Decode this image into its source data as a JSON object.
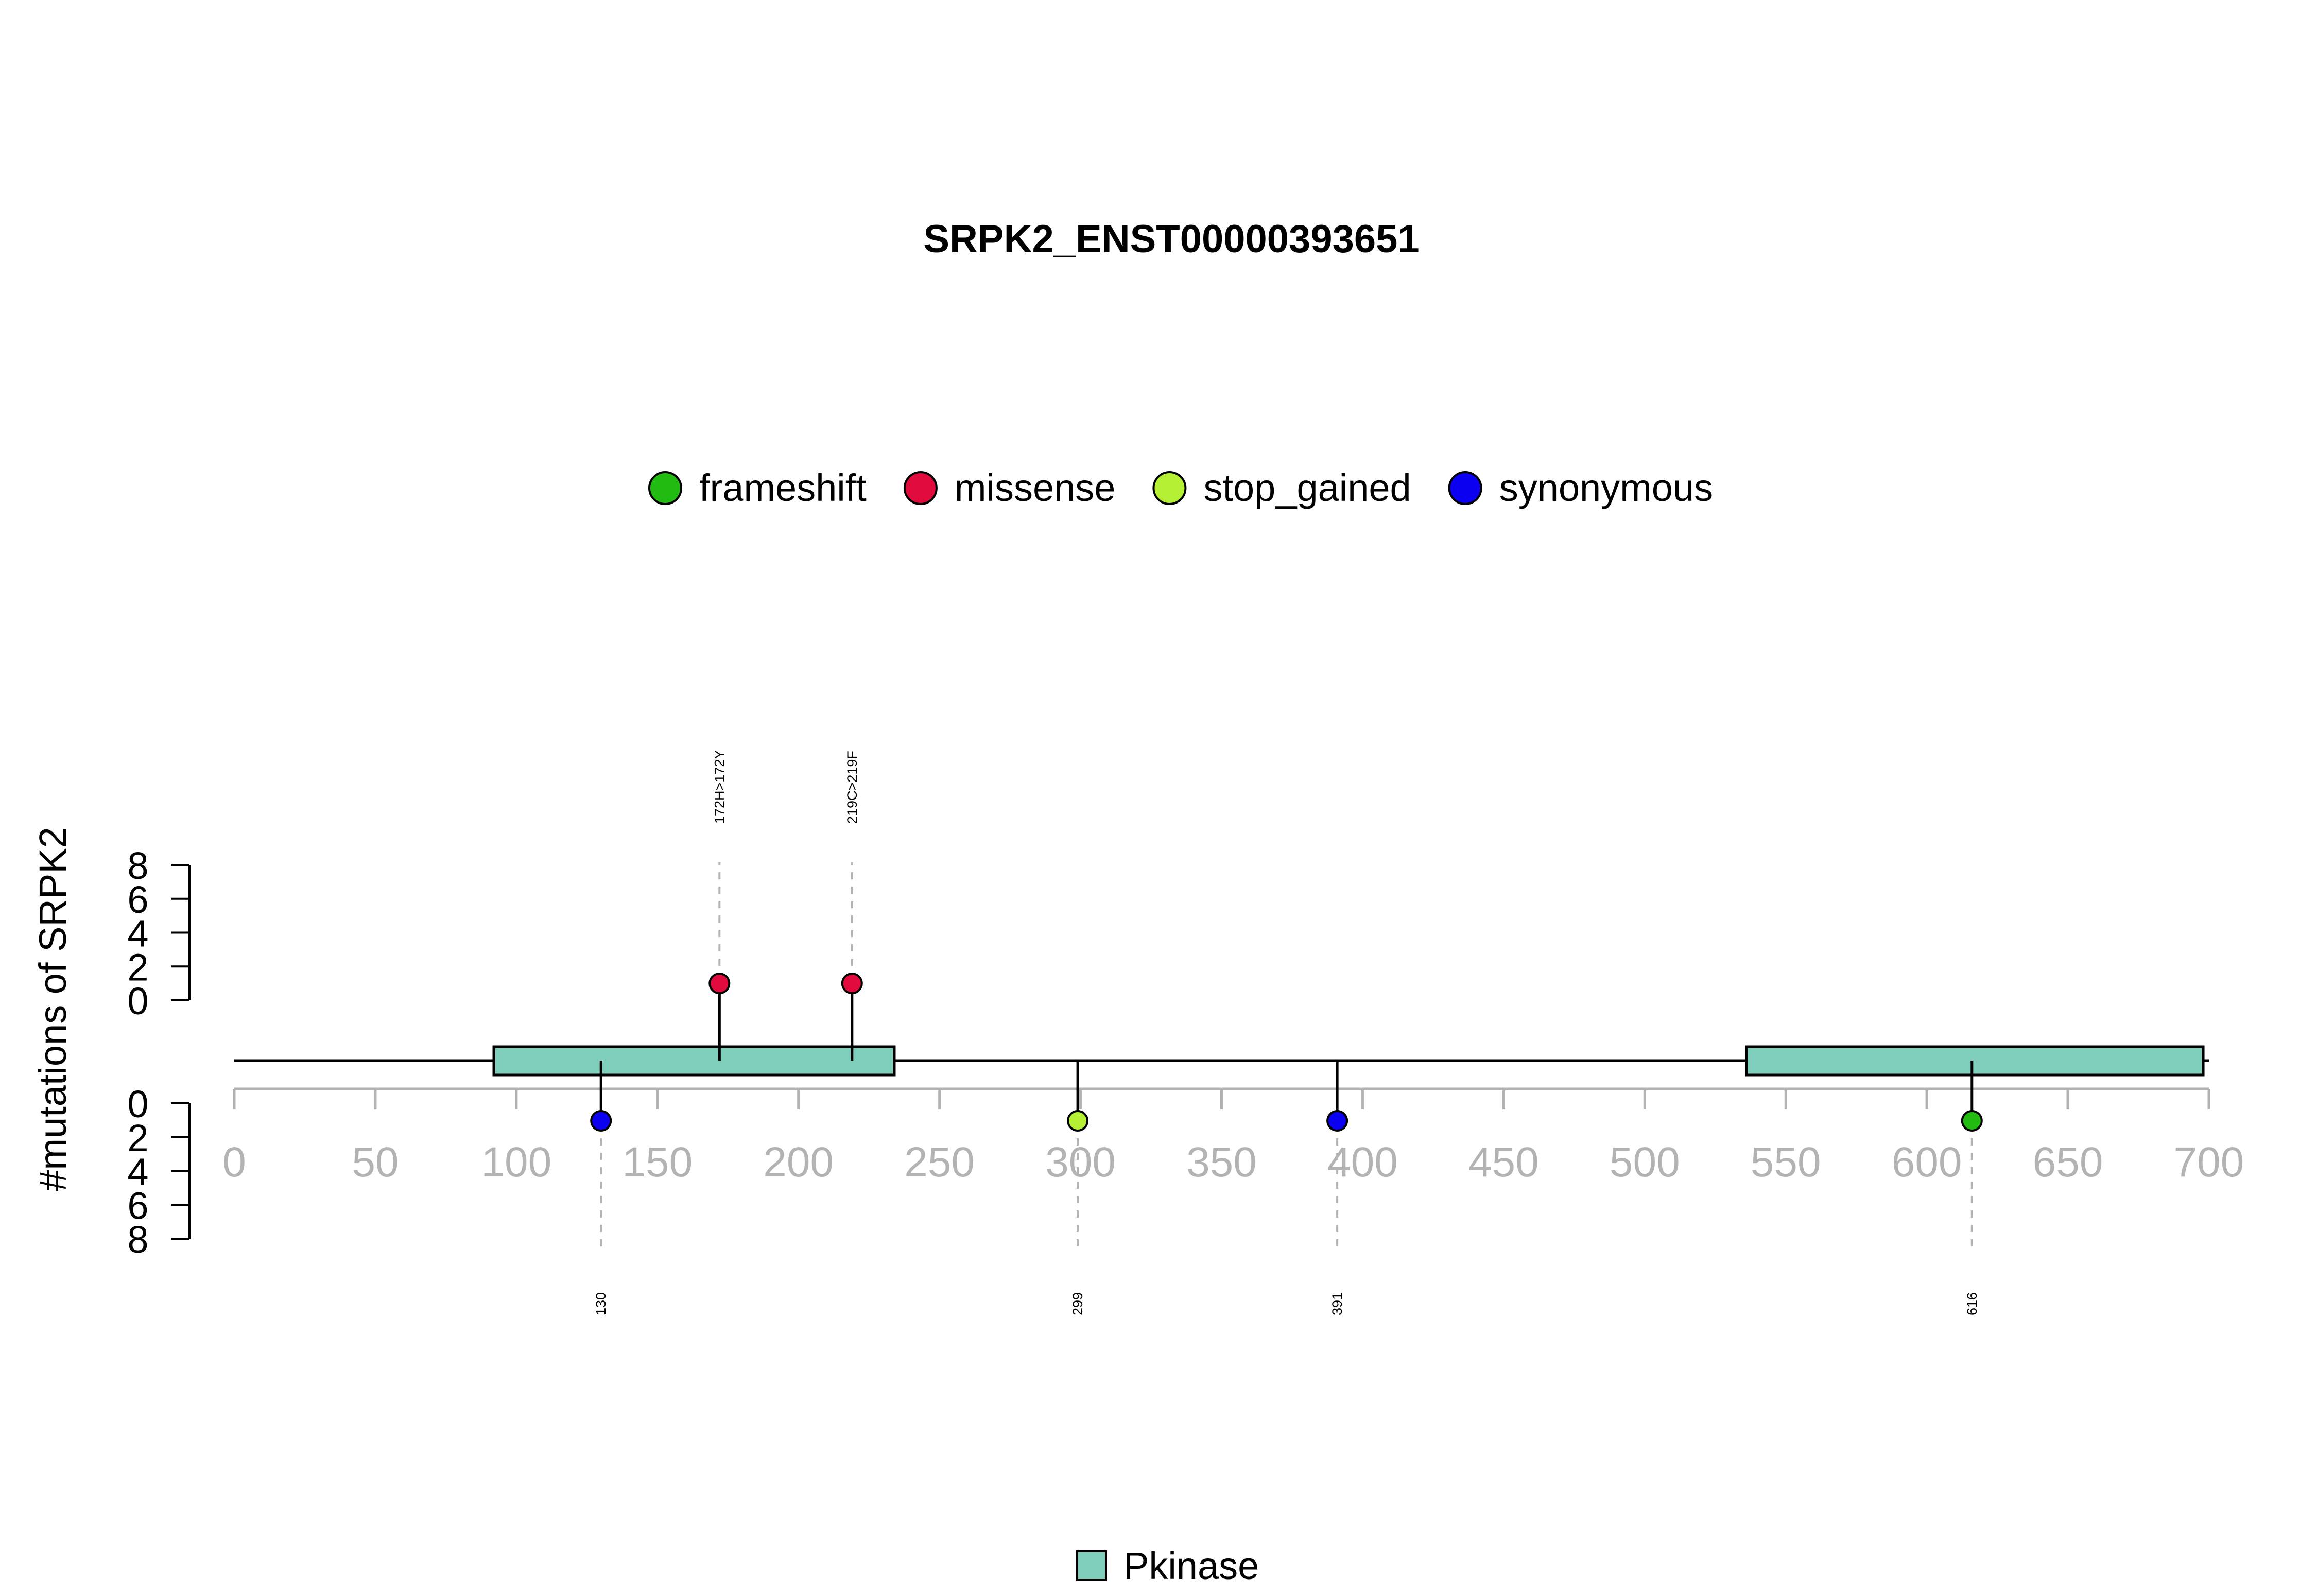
{
  "chart_data": {
    "type": "lollipop",
    "title": "SRPK2_ENST00000393651",
    "ylabel": "#mutations of SRPK2",
    "xlim": [
      0,
      700
    ],
    "x_ticks": [
      "0",
      "50",
      "100",
      "150",
      "200",
      "250",
      "300",
      "350",
      "400",
      "450",
      "500",
      "550",
      "600",
      "650",
      "700"
    ],
    "y_ticks_upper": [
      "8",
      "6",
      "4",
      "2",
      "0"
    ],
    "y_ticks_lower": [
      "0",
      "2",
      "4",
      "6",
      "8"
    ],
    "ylim": [
      0,
      8
    ],
    "legend": [
      {
        "label": "frameshift",
        "color": "#22bb11"
      },
      {
        "label": "missense",
        "color": "#e00b3c"
      },
      {
        "label": "stop_gained",
        "color": "#b5f035"
      },
      {
        "label": "synonymous",
        "color": "#0b00f0"
      }
    ],
    "domain_legend": [
      {
        "label": "Pkinase",
        "color": "#7fcdbb"
      }
    ],
    "domains": [
      {
        "name": "Pkinase",
        "start": 92,
        "end": 234
      },
      {
        "name": "Pkinase",
        "start": 536,
        "end": 698
      }
    ],
    "mutations_above": [
      {
        "position": 172,
        "count": 1,
        "type": "missense",
        "label": "172H>172Y"
      },
      {
        "position": 219,
        "count": 1,
        "type": "missense",
        "label": "219C>219F"
      }
    ],
    "mutations_below": [
      {
        "position": 130,
        "count": 1,
        "type": "synonymous",
        "label": "130"
      },
      {
        "position": 299,
        "count": 1,
        "type": "stop_gained",
        "label": "299"
      },
      {
        "position": 391,
        "count": 1,
        "type": "synonymous",
        "label": "391"
      },
      {
        "position": 616,
        "count": 1,
        "type": "frameshift",
        "label": "616"
      }
    ]
  }
}
